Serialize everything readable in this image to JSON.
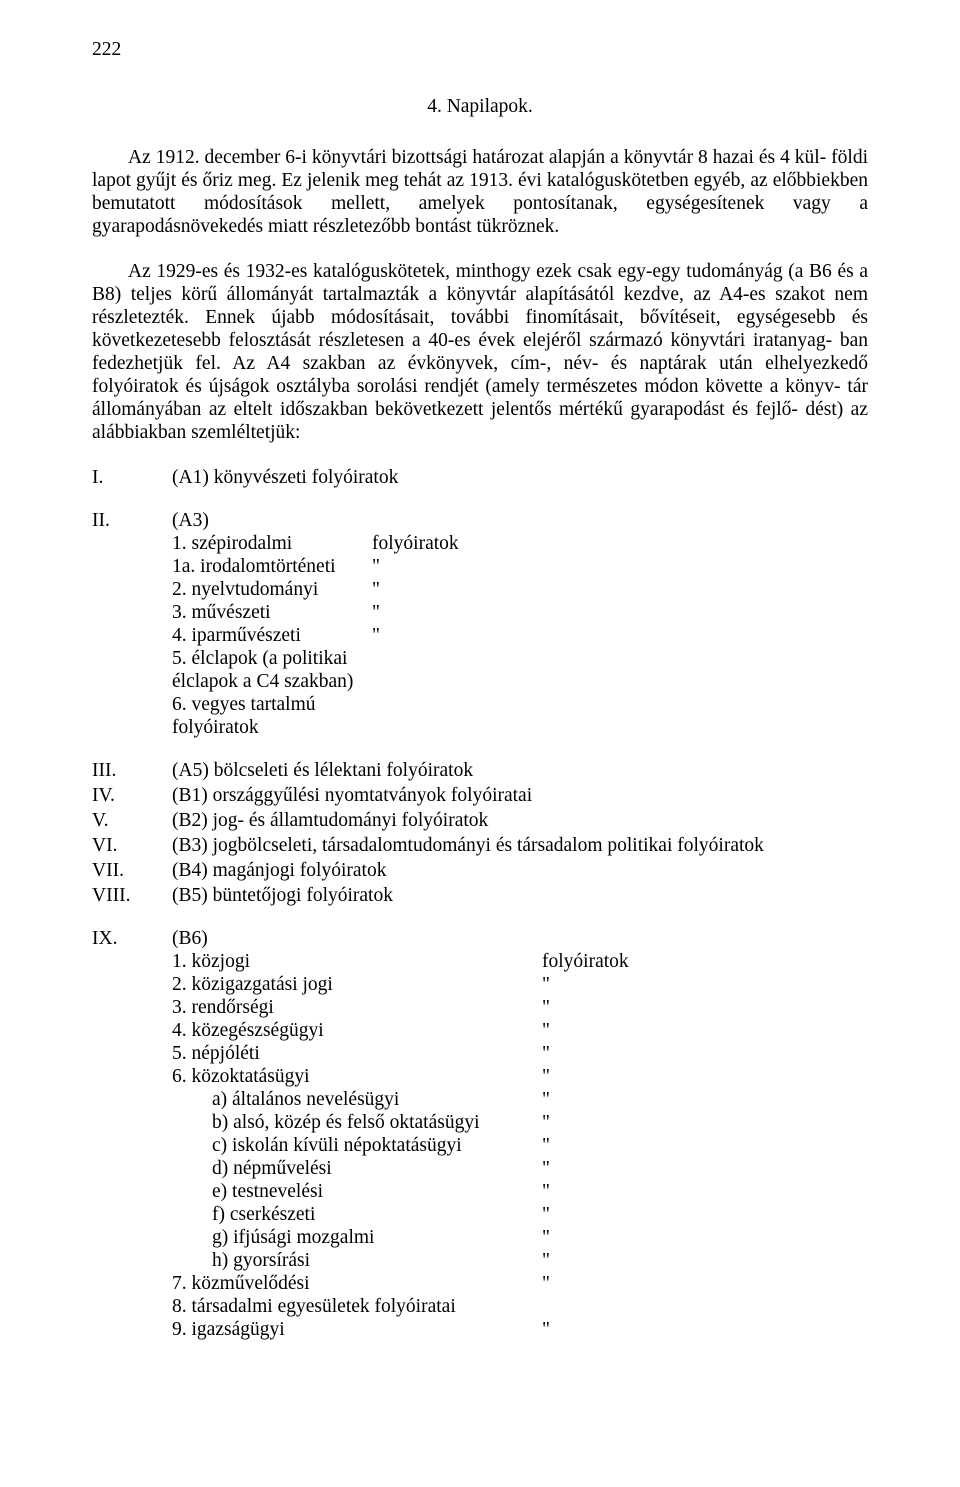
{
  "pagenum": "222",
  "heading": "4. Napilapok.",
  "para1": "Az 1912. december 6-i könyvtári bizottsági határozat alapján a könyvtár 8 hazai és 4 kül- földi lapot gyűjt és őriz meg. Ez jelenik meg tehát az 1913. évi katalóguskötetben egyéb, az előbbiekben bemutatott módosítások mellett, amelyek pontosítanak, egységesítenek vagy a gyarapodásnövekedés miatt részletezőbb bontást tükröznek.",
  "para2": "Az 1929-es és 1932-es katalóguskötetek, minthogy ezek csak egy-egy tudományág (a B6 és a B8) teljes körű állományát tartalmazták a könyvtár alapításától kezdve, az A4-es szakot nem részletezték. Ennek újabb módosításait, további finomításait, bővítéseit, egységesebb és következetesebb felosztását részletesen a 40-es évek elejéről származó könyvtári iratanyag- ban fedezhetjük fel. Az A4 szakban az évkönyvek, cím-, név- és naptárak után elhelyezkedő folyóiratok és újságok osztályba sorolási rendjét (amely természetes módon követte a könyv- tár állományában az eltelt időszakban bekövetkezett jelentős mértékű gyarapodást és fejlő- dést) az alábbiakban szemléltetjük:",
  "sections": {
    "I": {
      "roman": "I.",
      "text": "(A1) könyvészeti folyóiratok"
    },
    "II": {
      "roman": "II.",
      "head": "(A3)",
      "items": [
        {
          "num": "1. ",
          "label": "szépirodalmi",
          "ditto": "folyóiratok"
        },
        {
          "num": "1a. ",
          "label": "irodalomtörténeti",
          "ditto": "\""
        },
        {
          "num": "2. ",
          "label": "nyelvtudományi",
          "ditto": "\""
        },
        {
          "num": "3. ",
          "label": "művészeti",
          "ditto": "\""
        },
        {
          "num": "4. ",
          "label": "iparművészeti",
          "ditto": "\""
        },
        {
          "num": "5. ",
          "label": "élclapok (a politikai élclapok a C4 szakban)",
          "ditto": ""
        },
        {
          "num": "6. ",
          "label": "vegyes tartalmú folyóiratok",
          "ditto": ""
        }
      ]
    },
    "III": {
      "roman": "III.",
      "text": "(A5) bölcseleti és lélektani folyóiratok"
    },
    "IV": {
      "roman": "IV.",
      "text": "(B1) országgyűlési nyomtatványok folyóiratai"
    },
    "V": {
      "roman": "V.",
      "text": "(B2) jog- és államtudományi folyóiratok"
    },
    "VI": {
      "roman": "VI.",
      "text": "(B3) jogbölcseleti, társadalomtudományi és társadalom politikai folyóiratok"
    },
    "VII": {
      "roman": "VII.",
      "text": "(B4) magánjogi folyóiratok"
    },
    "VIII": {
      "roman": "VIII.",
      "text": "(B5) büntetőjogi folyóiratok"
    },
    "IX": {
      "roman": "IX.",
      "head": "(B6)",
      "items": [
        {
          "num": "1. ",
          "label": "közjogi",
          "ditto": "folyóiratok"
        },
        {
          "num": "2. ",
          "label": "közigazgatási jogi",
          "ditto": "\""
        },
        {
          "num": "3. ",
          "label": "rendőrségi",
          "ditto": "\""
        },
        {
          "num": "4. ",
          "label": "közegészségügyi",
          "ditto": "\""
        },
        {
          "num": "5. ",
          "label": "népjóléti",
          "ditto": "\""
        },
        {
          "num": "6. ",
          "label": "közoktatásügyi",
          "ditto": "\""
        }
      ],
      "subitems": [
        {
          "num": "a) ",
          "label": "általános nevelésügyi",
          "ditto": "\""
        },
        {
          "num": "b) ",
          "label": "alsó, közép és felső oktatásügyi",
          "ditto": "\""
        },
        {
          "num": "c) ",
          "label": "iskolán kívüli népoktatásügyi",
          "ditto": "\""
        },
        {
          "num": "d) ",
          "label": "népművelési",
          "ditto": "\""
        },
        {
          "num": "e) ",
          "label": "testnevelési",
          "ditto": "\""
        },
        {
          "num": "f) ",
          "label": "cserkészeti",
          "ditto": "\""
        },
        {
          "num": "g) ",
          "label": "ifjúsági mozgalmi",
          "ditto": "\""
        },
        {
          "num": "h) ",
          "label": "gyorsírási",
          "ditto": "\""
        }
      ],
      "items2": [
        {
          "num": "7. ",
          "label": "közművelődési",
          "ditto": "\""
        },
        {
          "num": "8. ",
          "label": "társadalmi egyesületek folyóiratai",
          "ditto": ""
        },
        {
          "num": "9. ",
          "label": "igazságügyi",
          "ditto": "\""
        }
      ]
    }
  },
  "layout": {
    "ii_label_width": 200,
    "ix_label_width": 370,
    "ix_sub_label_width": 330
  }
}
